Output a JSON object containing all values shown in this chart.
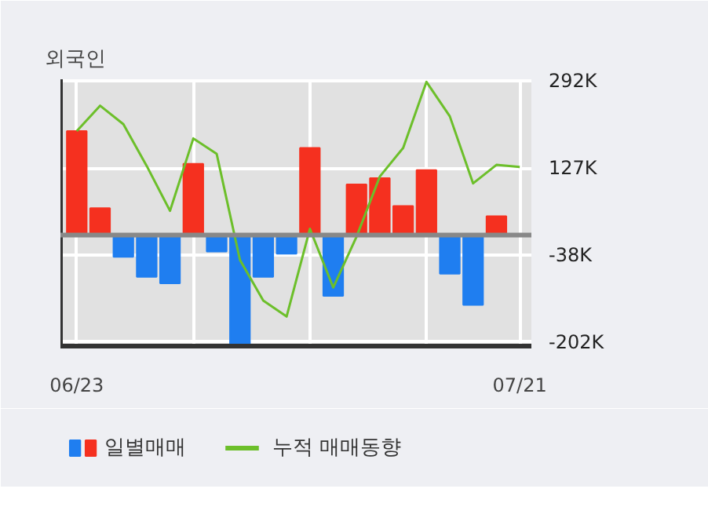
{
  "chart_data": {
    "type": "bar",
    "title": "외국인",
    "categories": [
      "06/23",
      null,
      null,
      null,
      null,
      null,
      null,
      null,
      null,
      null,
      null,
      null,
      null,
      null,
      null,
      null,
      null,
      null,
      null,
      "07/21"
    ],
    "series": [
      {
        "name": "일별매매",
        "colors": [
          "#f5301f",
          "#f5301f",
          "#1f7ef0",
          "#1f7ef0",
          "#1f7ef0",
          "#f5301f",
          "#1f7ef0",
          "#1f7ef0",
          "#1f7ef0",
          "#1f7ef0",
          "#f5301f",
          "#1f7ef0",
          "#f5301f",
          "#f5301f",
          "#f5301f",
          "#f5301f",
          "#1f7ef0",
          "#1f7ef0",
          "#f5301f",
          "#1f7ef0"
        ],
        "values": [
          197,
          51,
          -41,
          -79,
          -91,
          135,
          -31,
          -207,
          -79,
          -35,
          165,
          -115,
          96,
          108,
          55,
          123,
          -73,
          -132,
          36,
          null
        ]
      },
      {
        "name": "누적 매매동향",
        "type": "line",
        "color": "#6cbf2a",
        "values": [
          197,
          245,
          210,
          131,
          46,
          183,
          154,
          -47,
          -124,
          -154,
          12,
          -99,
          -3,
          111,
          165,
          290,
          225,
          98,
          133,
          129
        ]
      }
    ],
    "ylim": [
      -210,
      295
    ],
    "yticks": [
      {
        "value": 292,
        "label": "292K"
      },
      {
        "value": 127,
        "label": "127K"
      },
      {
        "value": -38,
        "label": "-38K"
      },
      {
        "value": -202,
        "label": "-202K"
      }
    ],
    "ref_lines": [
      {
        "axis": "y",
        "value": 0,
        "color": "#888888"
      }
    ],
    "grid": true,
    "legend": "bottom",
    "marker": "none",
    "line_style": "solid"
  }
}
